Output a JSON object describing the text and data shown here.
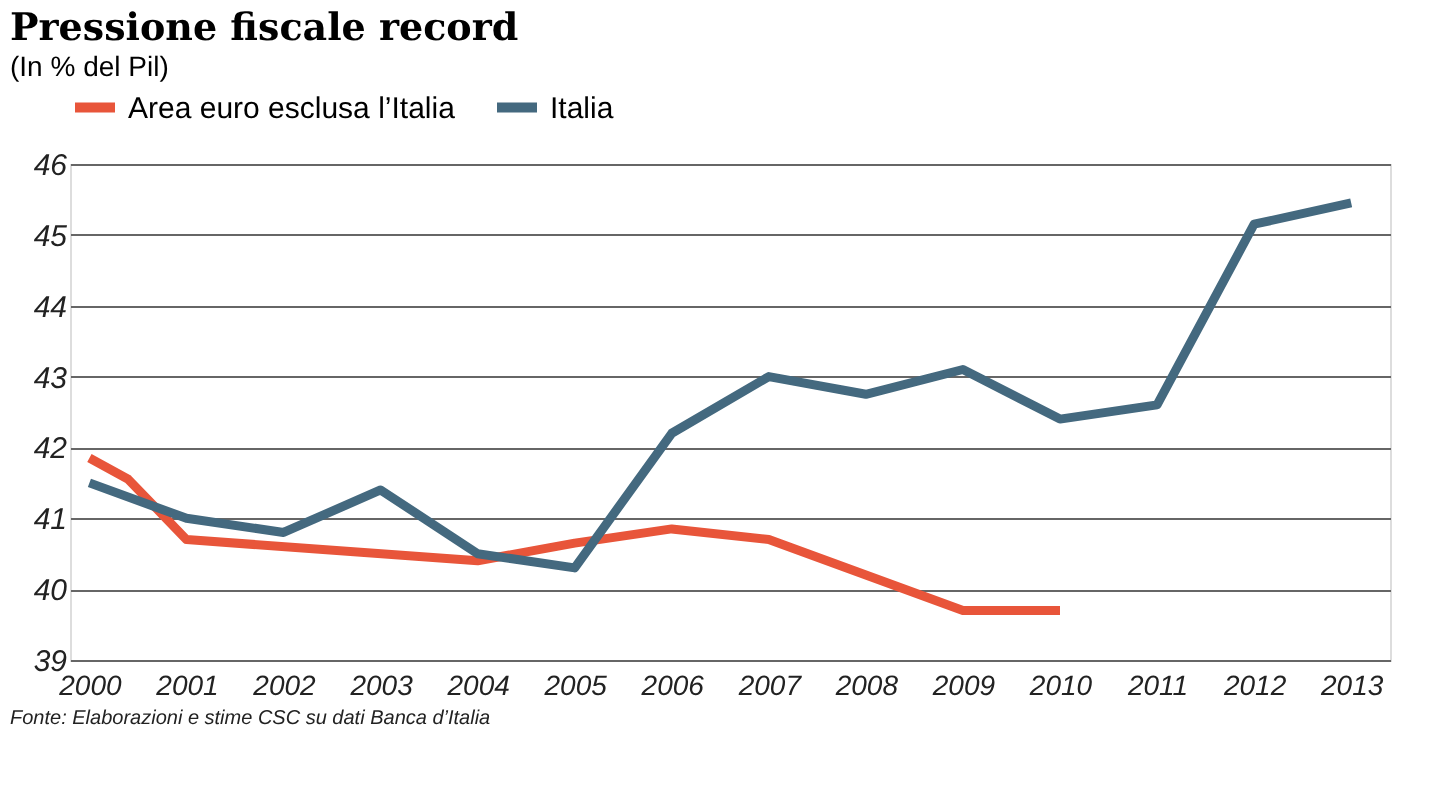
{
  "chart_data": {
    "type": "line",
    "title": "Pressione fiscale record",
    "subtitle": "(In % del Pil)",
    "x": [
      2000,
      2001,
      2002,
      2003,
      2004,
      2005,
      2006,
      2007,
      2008,
      2009,
      2010,
      2011,
      2012,
      2013
    ],
    "series": [
      {
        "name": "Area euro esclusa l’Italia",
        "color": "#e8553a",
        "x": [
          2000,
          2000.4,
          2001,
          2004,
          2005,
          2006,
          2007,
          2009,
          2010
        ],
        "values": [
          41.85,
          41.55,
          40.7,
          40.4,
          40.65,
          40.85,
          40.7,
          39.7,
          39.7
        ]
      },
      {
        "name": "Italia",
        "color": "#44697f",
        "values": [
          41.5,
          41.0,
          40.8,
          41.4,
          40.5,
          40.3,
          42.2,
          43.0,
          42.75,
          43.1,
          42.4,
          42.6,
          45.15,
          45.45
        ]
      }
    ],
    "xlim": [
      1999.8,
      2013.4
    ],
    "xticks": [
      2000,
      2001,
      2002,
      2003,
      2004,
      2005,
      2006,
      2007,
      2008,
      2009,
      2010,
      2011,
      2012,
      2013
    ],
    "ylim": [
      39,
      46
    ],
    "yticks": [
      39,
      40,
      41,
      42,
      43,
      44,
      45,
      46
    ],
    "grid": "y",
    "legend": "top",
    "marker": "none",
    "line_style": "solid",
    "annotations": [
      "Fonte: Elaborazioni e stime CSC su dati Banca d’Italia"
    ]
  }
}
